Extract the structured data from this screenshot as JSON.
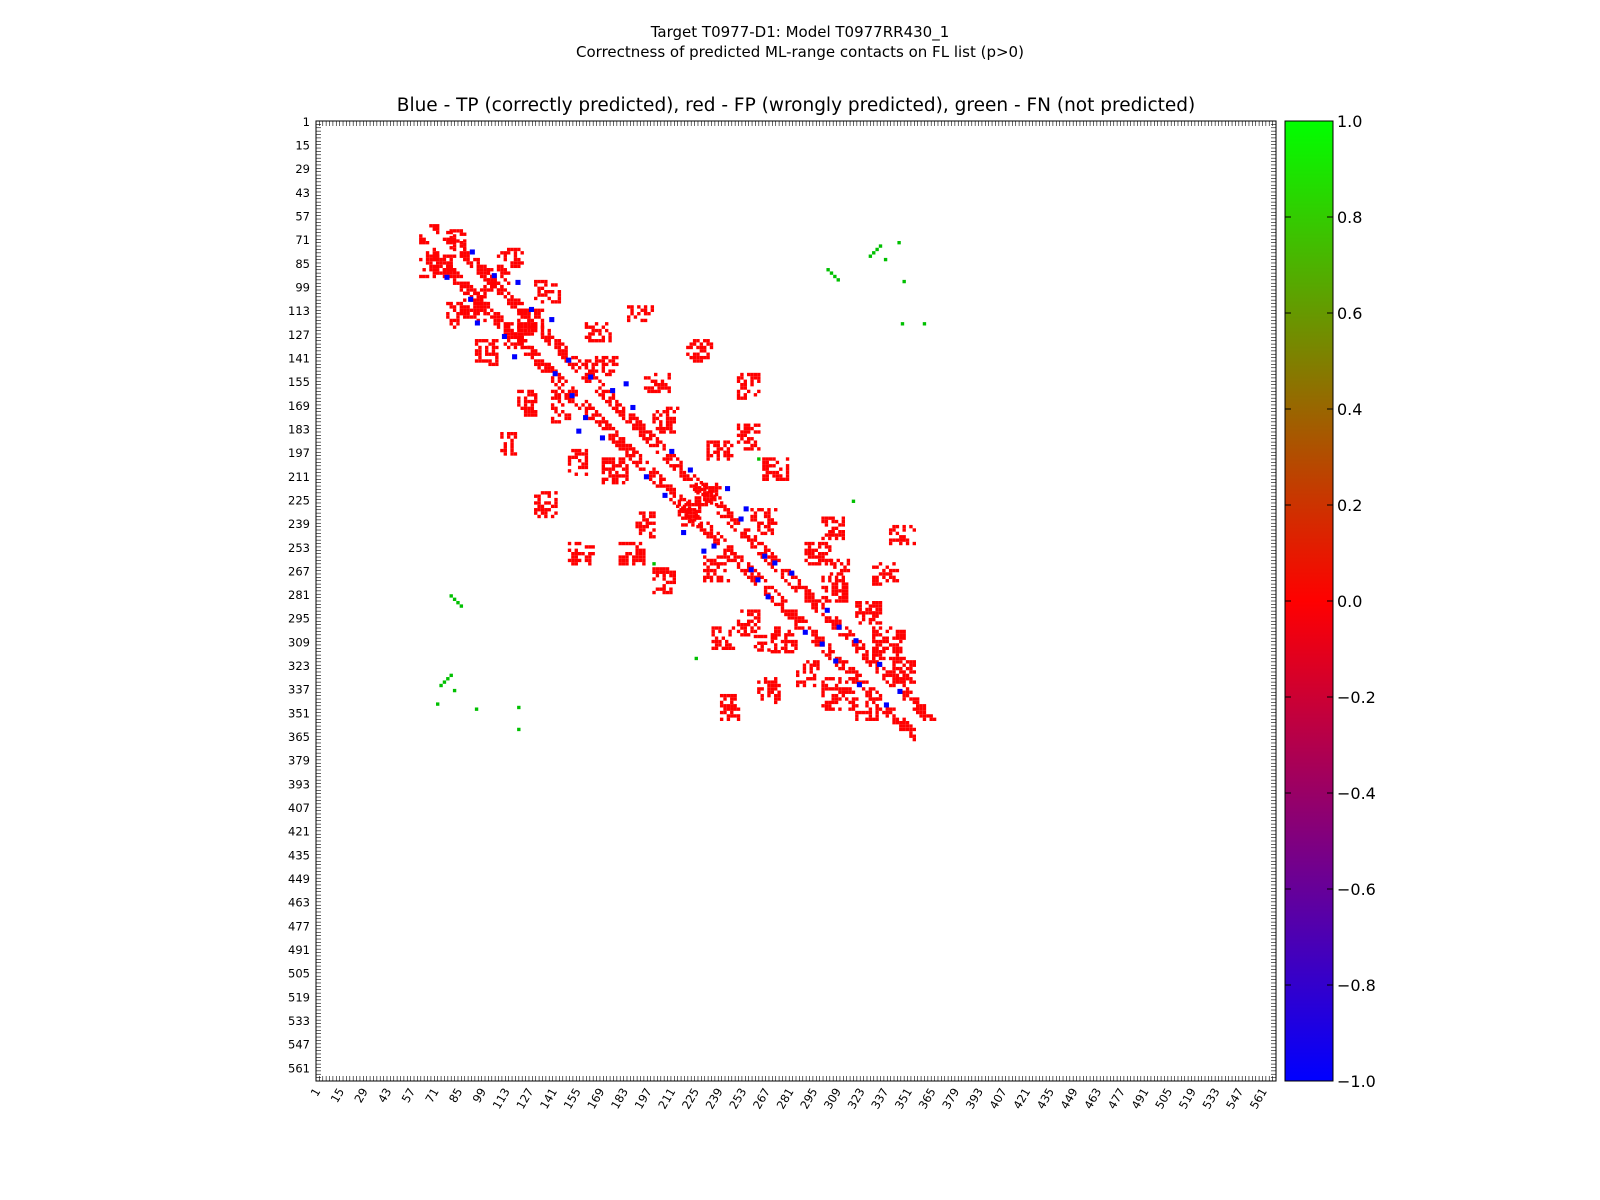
{
  "figure": {
    "suptitle_line1": "Target T0977-D1: Model T0977RR430_1",
    "suptitle_line2": "Correctness of predicted ML-range contacts on FL list (p>0)"
  },
  "chart_data": {
    "type": "heatmap",
    "title": "Blue - TP (correctly predicted), red - FP (wrongly predicted), green - FN (not predicted)",
    "xlabel": "",
    "ylabel": "",
    "axis_range": [
      1,
      568
    ],
    "y_inverted": true,
    "tick_labels": [
      1,
      15,
      29,
      43,
      57,
      71,
      85,
      99,
      113,
      127,
      141,
      155,
      169,
      183,
      197,
      211,
      225,
      239,
      253,
      267,
      281,
      295,
      309,
      323,
      337,
      351,
      365,
      379,
      393,
      407,
      421,
      435,
      449,
      463,
      477,
      491,
      505,
      519,
      533,
      547,
      561
    ],
    "colorbar": {
      "range": [
        -1.0,
        1.0
      ],
      "ticks": [
        "1.0",
        "0.8",
        "0.6",
        "0.4",
        "0.2",
        "0.0",
        "−0.2",
        "−0.4",
        "−0.6",
        "−0.8",
        "−1.0"
      ],
      "colors": [
        "#0000ff",
        "#ff0000",
        "#00ff00"
      ]
    },
    "value_meaning": {
      "TP": -1.0,
      "FP": 0.0,
      "FN": 1.0
    },
    "red_clusters": [
      [
        62,
        80,
        82,
        92
      ],
      [
        80,
        65,
        88,
        75
      ],
      [
        88,
        100,
        100,
        118
      ],
      [
        100,
        88,
        115,
        100
      ],
      [
        108,
        76,
        122,
        86
      ],
      [
        78,
        108,
        86,
        122
      ],
      [
        112,
        120,
        126,
        134
      ],
      [
        120,
        112,
        134,
        126
      ],
      [
        95,
        130,
        108,
        145
      ],
      [
        130,
        95,
        145,
        108
      ],
      [
        140,
        160,
        150,
        178
      ],
      [
        160,
        140,
        178,
        150
      ],
      [
        120,
        160,
        130,
        175
      ],
      [
        160,
        120,
        175,
        130
      ],
      [
        170,
        200,
        185,
        215
      ],
      [
        200,
        170,
        215,
        185
      ],
      [
        150,
        195,
        160,
        210
      ],
      [
        195,
        150,
        210,
        160
      ],
      [
        190,
        232,
        200,
        246
      ],
      [
        232,
        190,
        246,
        200
      ],
      [
        180,
        250,
        195,
        262
      ],
      [
        250,
        180,
        262,
        195
      ],
      [
        200,
        265,
        212,
        280
      ],
      [
        265,
        200,
        280,
        212
      ],
      [
        230,
        258,
        245,
        272
      ],
      [
        258,
        230,
        272,
        245
      ],
      [
        250,
        290,
        262,
        305
      ],
      [
        290,
        250,
        305,
        262
      ],
      [
        235,
        300,
        248,
        312
      ],
      [
        300,
        235,
        312,
        248
      ],
      [
        270,
        300,
        285,
        315
      ],
      [
        300,
        270,
        315,
        285
      ],
      [
        285,
        320,
        298,
        335
      ],
      [
        320,
        285,
        335,
        298
      ],
      [
        300,
        330,
        318,
        348
      ],
      [
        330,
        300,
        348,
        318
      ],
      [
        262,
        330,
        275,
        345
      ],
      [
        330,
        262,
        345,
        275
      ],
      [
        240,
        340,
        250,
        355
      ],
      [
        340,
        240,
        355,
        250
      ],
      [
        225,
        215,
        240,
        228
      ],
      [
        215,
        225,
        228,
        240
      ],
      [
        260,
        305,
        268,
        315
      ],
      [
        305,
        260,
        315,
        268
      ],
      [
        150,
        250,
        165,
        262
      ],
      [
        250,
        150,
        262,
        165
      ],
      [
        130,
        220,
        142,
        235
      ],
      [
        220,
        130,
        235,
        142
      ],
      [
        110,
        185,
        118,
        200
      ],
      [
        185,
        110,
        200,
        118
      ],
      [
        320,
        342,
        332,
        355
      ],
      [
        342,
        320,
        355,
        332
      ]
    ],
    "blue_points": [
      [
        93,
        78
      ],
      [
        78,
        93
      ],
      [
        106,
        92
      ],
      [
        92,
        106
      ],
      [
        120,
        96
      ],
      [
        96,
        120
      ],
      [
        128,
        112
      ],
      [
        112,
        128
      ],
      [
        150,
        142
      ],
      [
        142,
        150
      ],
      [
        163,
        152
      ],
      [
        152,
        163
      ],
      [
        176,
        160
      ],
      [
        160,
        176
      ],
      [
        188,
        170
      ],
      [
        170,
        188
      ],
      [
        211,
        196
      ],
      [
        196,
        211
      ],
      [
        222,
        207
      ],
      [
        207,
        222
      ],
      [
        244,
        218
      ],
      [
        218,
        244
      ],
      [
        252,
        236
      ],
      [
        236,
        252
      ],
      [
        266,
        258
      ],
      [
        258,
        266
      ],
      [
        282,
        268
      ],
      [
        268,
        282
      ],
      [
        303,
        290
      ],
      [
        290,
        303
      ],
      [
        320,
        308
      ],
      [
        308,
        320
      ],
      [
        334,
        322
      ],
      [
        322,
        334
      ],
      [
        346,
        338
      ],
      [
        338,
        346
      ],
      [
        255,
        230
      ],
      [
        230,
        255
      ],
      [
        272,
        262
      ],
      [
        262,
        272
      ],
      [
        310,
        300
      ],
      [
        300,
        310
      ],
      [
        184,
        156
      ],
      [
        156,
        184
      ],
      [
        140,
        118
      ],
      [
        118,
        140
      ]
    ],
    "green_points": [
      [
        82,
        283
      ],
      [
        84,
        285
      ],
      [
        86,
        287
      ],
      [
        80,
        281
      ],
      [
        305,
        90
      ],
      [
        307,
        92
      ],
      [
        309,
        94
      ],
      [
        303,
        88
      ],
      [
        78,
        330
      ],
      [
        76,
        332
      ],
      [
        74,
        334
      ],
      [
        80,
        328
      ],
      [
        330,
        78
      ],
      [
        332,
        76
      ],
      [
        334,
        74
      ],
      [
        328,
        80
      ],
      [
        72,
        345
      ],
      [
        345,
        72
      ],
      [
        348,
        95
      ],
      [
        95,
        348
      ],
      [
        120,
        360
      ],
      [
        360,
        120
      ],
      [
        200,
        262
      ],
      [
        262,
        200
      ],
      [
        225,
        318
      ],
      [
        318,
        225
      ],
      [
        337,
        82
      ],
      [
        82,
        337
      ],
      [
        120,
        347
      ],
      [
        347,
        120
      ]
    ]
  }
}
